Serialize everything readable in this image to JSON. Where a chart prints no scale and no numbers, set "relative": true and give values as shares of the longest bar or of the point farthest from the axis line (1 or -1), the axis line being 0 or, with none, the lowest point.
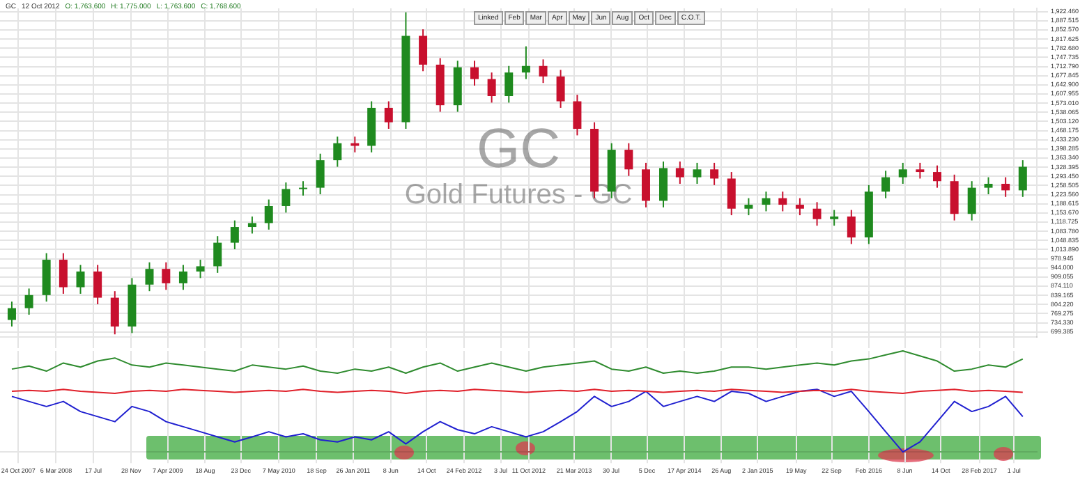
{
  "chart_data": [
    {
      "type": "candlestick",
      "title": "GC",
      "subtitle": "Gold Futures - GC",
      "annotations": [
        "12 Oct 2012",
        "O: 1,763.600",
        "H: 1,775.000",
        "L: 1,763.600",
        "C: 1,768.600"
      ],
      "x": [
        "2007-10",
        "2007-12",
        "2008-02",
        "2008-04",
        "2008-06",
        "2008-08",
        "2008-10",
        "2008-12",
        "2009-02",
        "2009-04",
        "2009-06",
        "2009-08",
        "2009-10",
        "2009-12",
        "2010-02",
        "2010-04",
        "2010-06",
        "2010-08",
        "2010-10",
        "2010-12",
        "2011-02",
        "2011-04",
        "2011-06",
        "2011-08",
        "2011-10",
        "2011-12",
        "2012-02",
        "2012-04",
        "2012-06",
        "2012-08",
        "2012-10",
        "2012-12",
        "2013-02",
        "2013-04",
        "2013-06",
        "2013-08",
        "2013-10",
        "2013-12",
        "2014-02",
        "2014-04",
        "2014-06",
        "2014-08",
        "2014-10",
        "2014-12",
        "2015-02",
        "2015-04",
        "2015-06",
        "2015-08",
        "2015-10",
        "2015-12",
        "2016-02",
        "2016-04",
        "2016-06",
        "2016-08",
        "2016-10",
        "2016-12",
        "2017-02",
        "2017-04",
        "2017-06",
        "2017-08"
      ],
      "ohlc": [
        [
          745,
          815,
          720,
          790
        ],
        [
          790,
          865,
          765,
          840
        ],
        [
          840,
          1000,
          815,
          975
        ],
        [
          975,
          1000,
          845,
          870
        ],
        [
          870,
          955,
          845,
          930
        ],
        [
          930,
          955,
          805,
          830
        ],
        [
          830,
          855,
          690,
          720
        ],
        [
          720,
          905,
          695,
          880
        ],
        [
          880,
          965,
          855,
          940
        ],
        [
          940,
          965,
          860,
          885
        ],
        [
          885,
          955,
          860,
          930
        ],
        [
          930,
          975,
          905,
          950
        ],
        [
          950,
          1065,
          925,
          1040
        ],
        [
          1040,
          1125,
          1015,
          1100
        ],
        [
          1100,
          1140,
          1075,
          1115
        ],
        [
          1115,
          1205,
          1090,
          1180
        ],
        [
          1180,
          1270,
          1155,
          1245
        ],
        [
          1245,
          1275,
          1220,
          1250
        ],
        [
          1250,
          1380,
          1225,
          1355
        ],
        [
          1355,
          1445,
          1330,
          1420
        ],
        [
          1420,
          1445,
          1385,
          1410
        ],
        [
          1410,
          1580,
          1385,
          1555
        ],
        [
          1555,
          1580,
          1475,
          1500
        ],
        [
          1500,
          1920,
          1475,
          1830
        ],
        [
          1830,
          1855,
          1695,
          1720
        ],
        [
          1720,
          1745,
          1540,
          1565
        ],
        [
          1565,
          1735,
          1540,
          1710
        ],
        [
          1710,
          1735,
          1640,
          1665
        ],
        [
          1665,
          1690,
          1575,
          1600
        ],
        [
          1600,
          1715,
          1575,
          1690
        ],
        [
          1690,
          1790,
          1665,
          1715
        ],
        [
          1715,
          1740,
          1650,
          1675
        ],
        [
          1675,
          1700,
          1555,
          1580
        ],
        [
          1580,
          1605,
          1450,
          1475
        ],
        [
          1475,
          1500,
          1210,
          1235
        ],
        [
          1235,
          1420,
          1210,
          1395
        ],
        [
          1395,
          1420,
          1295,
          1320
        ],
        [
          1320,
          1345,
          1175,
          1200
        ],
        [
          1200,
          1350,
          1175,
          1325
        ],
        [
          1325,
          1350,
          1265,
          1290
        ],
        [
          1290,
          1345,
          1265,
          1320
        ],
        [
          1320,
          1345,
          1260,
          1285
        ],
        [
          1285,
          1310,
          1145,
          1170
        ],
        [
          1170,
          1210,
          1145,
          1185
        ],
        [
          1185,
          1235,
          1160,
          1210
        ],
        [
          1210,
          1235,
          1160,
          1185
        ],
        [
          1185,
          1210,
          1145,
          1170
        ],
        [
          1170,
          1195,
          1105,
          1130
        ],
        [
          1130,
          1165,
          1105,
          1140
        ],
        [
          1140,
          1165,
          1035,
          1060
        ],
        [
          1060,
          1260,
          1035,
          1235
        ],
        [
          1235,
          1315,
          1210,
          1290
        ],
        [
          1290,
          1345,
          1265,
          1320
        ],
        [
          1320,
          1345,
          1285,
          1310
        ],
        [
          1310,
          1335,
          1250,
          1275
        ],
        [
          1275,
          1300,
          1125,
          1150
        ],
        [
          1150,
          1275,
          1125,
          1250
        ],
        [
          1250,
          1290,
          1225,
          1265
        ],
        [
          1265,
          1290,
          1215,
          1240
        ],
        [
          1240,
          1355,
          1215,
          1330
        ]
      ],
      "colors": [
        "#1f8a1f",
        "#1f8a1f",
        "#1f8a1f",
        "#c8102e",
        "#1f8a1f",
        "#c8102e",
        "#c8102e",
        "#1f8a1f",
        "#1f8a1f",
        "#c8102e",
        "#1f8a1f",
        "#1f8a1f",
        "#1f8a1f",
        "#1f8a1f",
        "#1f8a1f",
        "#1f8a1f",
        "#1f8a1f",
        "#1f8a1f",
        "#1f8a1f",
        "#1f8a1f",
        "#c8102e",
        "#1f8a1f",
        "#c8102e",
        "#1f8a1f",
        "#c8102e",
        "#c8102e",
        "#1f8a1f",
        "#c8102e",
        "#c8102e",
        "#1f8a1f",
        "#1f8a1f",
        "#c8102e",
        "#c8102e",
        "#c8102e",
        "#c8102e",
        "#1f8a1f",
        "#c8102e",
        "#c8102e",
        "#1f8a1f",
        "#c8102e",
        "#1f8a1f",
        "#c8102e",
        "#c8102e",
        "#1f8a1f",
        "#1f8a1f",
        "#c8102e",
        "#c8102e",
        "#c8102e",
        "#1f8a1f",
        "#c8102e",
        "#1f8a1f",
        "#1f8a1f",
        "#1f8a1f",
        "#c8102e",
        "#c8102e",
        "#c8102e",
        "#1f8a1f",
        "#1f8a1f",
        "#c8102e",
        "#1f8a1f"
      ],
      "xlim": [
        "2007-08-20",
        "2017-09-20"
      ],
      "xticks": [
        {
          "value": "2007-10-24",
          "label": null
        },
        {
          "value": "2008-03-06",
          "label": null
        },
        {
          "value": "2008-07-17",
          "label": null
        },
        {
          "value": "2008-11-28",
          "label": null
        },
        {
          "value": "2009-04-07",
          "label": null
        },
        {
          "value": "2009-08-18",
          "label": null
        },
        {
          "value": "2009-12-23",
          "label": null
        },
        {
          "value": "2010-05-07",
          "label": null
        },
        {
          "value": "2010-09-18",
          "label": null
        },
        {
          "value": "2011-01-26",
          "label": null
        },
        {
          "value": "2011-06-08",
          "label": null
        },
        {
          "value": "2011-10-14",
          "label": null
        },
        {
          "value": "2012-02-24",
          "label": null
        },
        {
          "value": "2012-07-03",
          "label": null
        },
        {
          "value": "2012-10-11",
          "label": null
        },
        {
          "value": "2013-03-21",
          "label": null
        },
        {
          "value": "2013-07-30",
          "label": null
        },
        {
          "value": "2013-12-05",
          "label": null
        },
        {
          "value": "2014-04-17",
          "label": null
        },
        {
          "value": "2014-08-26",
          "label": null
        },
        {
          "value": "2015-01-02",
          "label": null
        },
        {
          "value": "2015-05-19",
          "label": null
        },
        {
          "value": "2015-09-22",
          "label": null
        },
        {
          "value": "2016-02-01",
          "label": null
        },
        {
          "value": "2016-06-08",
          "label": null
        },
        {
          "value": "2016-10-14",
          "label": null
        },
        {
          "value": "2017-02-28",
          "label": null
        },
        {
          "value": "2017-07-01",
          "label": null
        }
      ],
      "ylim": [
        680,
        1935
      ],
      "yticks": [
        {
          "value": 1922.46,
          "label": "1,922.460"
        },
        {
          "value": 1887.515,
          "label": "1,887.515"
        },
        {
          "value": 1852.57,
          "label": "1,852.570"
        },
        {
          "value": 1817.625,
          "label": "1,817.625"
        },
        {
          "value": 1782.68,
          "label": "1,782.680"
        },
        {
          "value": 1747.735,
          "label": "1,747.735"
        },
        {
          "value": 1712.79,
          "label": "1,712.790"
        },
        {
          "value": 1677.845,
          "label": "1,677.845"
        },
        {
          "value": 1642.9,
          "label": "1,642.900"
        },
        {
          "value": 1607.955,
          "label": "1,607.955"
        },
        {
          "value": 1573.01,
          "label": "1,573.010"
        },
        {
          "value": 1538.065,
          "label": "1,538.065"
        },
        {
          "value": 1503.12,
          "label": "1,503.120"
        },
        {
          "value": 1468.175,
          "label": "1,468.175"
        },
        {
          "value": 1433.23,
          "label": "1,433.230"
        },
        {
          "value": 1398.285,
          "label": "1,398.285"
        },
        {
          "value": 1363.34,
          "label": "1,363.340"
        },
        {
          "value": 1328.395,
          "label": "1,328.395"
        },
        {
          "value": 1293.45,
          "label": "1,293.450"
        },
        {
          "value": 1258.505,
          "label": "1,258.505"
        },
        {
          "value": 1223.56,
          "label": "1,223.560"
        },
        {
          "value": 1188.615,
          "label": "1,188.615"
        },
        {
          "value": 1153.67,
          "label": "1,153.670"
        },
        {
          "value": 1118.725,
          "label": "1,118.725"
        },
        {
          "value": 1083.78,
          "label": "1,083.780"
        },
        {
          "value": 1048.835,
          "label": "1,048.835"
        },
        {
          "value": 1013.89,
          "label": "1,013.890"
        },
        {
          "value": 978.945,
          "label": "978.945"
        },
        {
          "value": 944,
          "label": "944.000"
        },
        {
          "value": 909.055,
          "label": "909.055"
        },
        {
          "value": 874.11,
          "label": "874.110"
        },
        {
          "value": 839.165,
          "label": "839.165"
        },
        {
          "value": 804.22,
          "label": "804.220"
        },
        {
          "value": 769.275,
          "label": "769.275"
        },
        {
          "value": 734.33,
          "label": "734.330"
        },
        {
          "value": 699.385,
          "label": "699.385"
        }
      ],
      "grid": true,
      "tick_labels": "y"
    },
    {
      "type": "line",
      "relative": true,
      "grid": "x",
      "tick_labels": "x",
      "x": [
        "2007-10",
        "2007-12",
        "2008-02",
        "2008-04",
        "2008-06",
        "2008-08",
        "2008-10",
        "2008-12",
        "2009-02",
        "2009-04",
        "2009-06",
        "2009-08",
        "2009-10",
        "2009-12",
        "2010-02",
        "2010-04",
        "2010-06",
        "2010-08",
        "2010-10",
        "2010-12",
        "2011-02",
        "2011-04",
        "2011-06",
        "2011-08",
        "2011-10",
        "2011-12",
        "2012-02",
        "2012-04",
        "2012-06",
        "2012-08",
        "2012-10",
        "2012-12",
        "2013-02",
        "2013-04",
        "2013-06",
        "2013-08",
        "2013-10",
        "2013-12",
        "2014-02",
        "2014-04",
        "2014-06",
        "2014-08",
        "2014-10",
        "2014-12",
        "2015-02",
        "2015-04",
        "2015-06",
        "2015-08",
        "2015-10",
        "2015-12",
        "2016-02",
        "2016-04",
        "2016-06",
        "2016-08",
        "2016-10",
        "2016-12",
        "2017-02",
        "2017-04",
        "2017-06",
        "2017-08"
      ],
      "xlim": [
        "2007-08-20",
        "2017-09-20"
      ],
      "xticks": [
        {
          "value": "2007-10-24",
          "label": "24 Oct 2007"
        },
        {
          "value": "2008-03-06",
          "label": "6 Mar 2008"
        },
        {
          "value": "2008-07-17",
          "label": "17 Jul"
        },
        {
          "value": "2008-11-28",
          "label": "28 Nov"
        },
        {
          "value": "2009-04-07",
          "label": "7 Apr 2009"
        },
        {
          "value": "2009-08-18",
          "label": "18 Aug"
        },
        {
          "value": "2009-12-23",
          "label": "23 Dec"
        },
        {
          "value": "2010-05-07",
          "label": "7 May 2010"
        },
        {
          "value": "2010-09-18",
          "label": "18 Sep"
        },
        {
          "value": "2011-01-26",
          "label": "26 Jan 2011"
        },
        {
          "value": "2011-06-08",
          "label": "8 Jun"
        },
        {
          "value": "2011-10-14",
          "label": "14 Oct"
        },
        {
          "value": "2012-02-24",
          "label": "24 Feb 2012"
        },
        {
          "value": "2012-07-03",
          "label": "3 Jul"
        },
        {
          "value": "2012-10-11",
          "label": "11 Oct 2012"
        },
        {
          "value": "2013-03-21",
          "label": "21 Mar 2013"
        },
        {
          "value": "2013-07-30",
          "label": "30 Jul"
        },
        {
          "value": "2013-12-05",
          "label": "5 Dec"
        },
        {
          "value": "2014-04-17",
          "label": "17 Apr 2014"
        },
        {
          "value": "2014-08-26",
          "label": "26 Aug"
        },
        {
          "value": "2015-01-02",
          "label": "2 Jan 2015"
        },
        {
          "value": "2015-05-19",
          "label": "19 May"
        },
        {
          "value": "2015-09-22",
          "label": "22 Sep"
        },
        {
          "value": "2016-02-01",
          "label": "Feb 2016"
        },
        {
          "value": "2016-06-08",
          "label": "8 Jun"
        },
        {
          "value": "2016-10-14",
          "label": "14 Oct"
        },
        {
          "value": "2017-02-28",
          "label": "28 Feb 2017"
        },
        {
          "value": "2017-07-01",
          "label": "1 Jul"
        }
      ],
      "series": [
        {
          "color": "#2e8b2e",
          "values": [
            0.82,
            0.85,
            0.8,
            0.88,
            0.84,
            0.9,
            0.93,
            0.86,
            0.84,
            0.88,
            0.86,
            0.84,
            0.82,
            0.8,
            0.86,
            0.84,
            0.82,
            0.85,
            0.8,
            0.78,
            0.82,
            0.8,
            0.84,
            0.78,
            0.84,
            0.88,
            0.8,
            0.84,
            0.88,
            0.84,
            0.8,
            0.84,
            0.86,
            0.88,
            0.9,
            0.82,
            0.8,
            0.84,
            0.78,
            0.8,
            0.78,
            0.8,
            0.84,
            0.84,
            0.82,
            0.84,
            0.86,
            0.88,
            0.86,
            0.9,
            0.92,
            0.96,
            1,
            0.95,
            0.9,
            0.8,
            0.82,
            0.86,
            0.84,
            0.92
          ]
        },
        {
          "color": "#e0202a",
          "values": [
            0.6,
            0.61,
            0.6,
            0.62,
            0.6,
            0.59,
            0.58,
            0.6,
            0.61,
            0.6,
            0.62,
            0.61,
            0.6,
            0.59,
            0.6,
            0.61,
            0.6,
            0.62,
            0.6,
            0.59,
            0.6,
            0.61,
            0.6,
            0.58,
            0.6,
            0.61,
            0.6,
            0.62,
            0.61,
            0.6,
            0.59,
            0.6,
            0.61,
            0.6,
            0.62,
            0.6,
            0.61,
            0.6,
            0.59,
            0.6,
            0.61,
            0.6,
            0.62,
            0.61,
            0.6,
            0.59,
            0.6,
            0.61,
            0.6,
            0.62,
            0.6,
            0.59,
            0.58,
            0.6,
            0.61,
            0.62,
            0.6,
            0.61,
            0.6,
            0.59
          ]
        },
        {
          "color": "#2020d0",
          "values": [
            0.55,
            0.5,
            0.45,
            0.5,
            0.4,
            0.35,
            0.3,
            0.45,
            0.4,
            0.3,
            0.25,
            0.2,
            0.15,
            0.1,
            0.15,
            0.2,
            0.15,
            0.18,
            0.12,
            0.1,
            0.15,
            0.12,
            0.2,
            0.08,
            0.2,
            0.3,
            0.22,
            0.18,
            0.25,
            0.2,
            0.15,
            0.2,
            0.3,
            0.4,
            0.55,
            0.45,
            0.5,
            0.6,
            0.45,
            0.5,
            0.55,
            0.5,
            0.6,
            0.58,
            0.5,
            0.55,
            0.6,
            0.62,
            0.55,
            0.6,
            0.4,
            0.2,
            0,
            0.1,
            0.3,
            0.5,
            0.4,
            0.45,
            0.55,
            0.35
          ]
        }
      ]
    },
    {
      "type": "other",
      "annotations": [
        "Linked",
        "Feb",
        "Mar",
        "Apr",
        "May",
        "Jun",
        "Aug",
        "Oct",
        "Dec",
        "C.O.T."
      ]
    }
  ]
}
